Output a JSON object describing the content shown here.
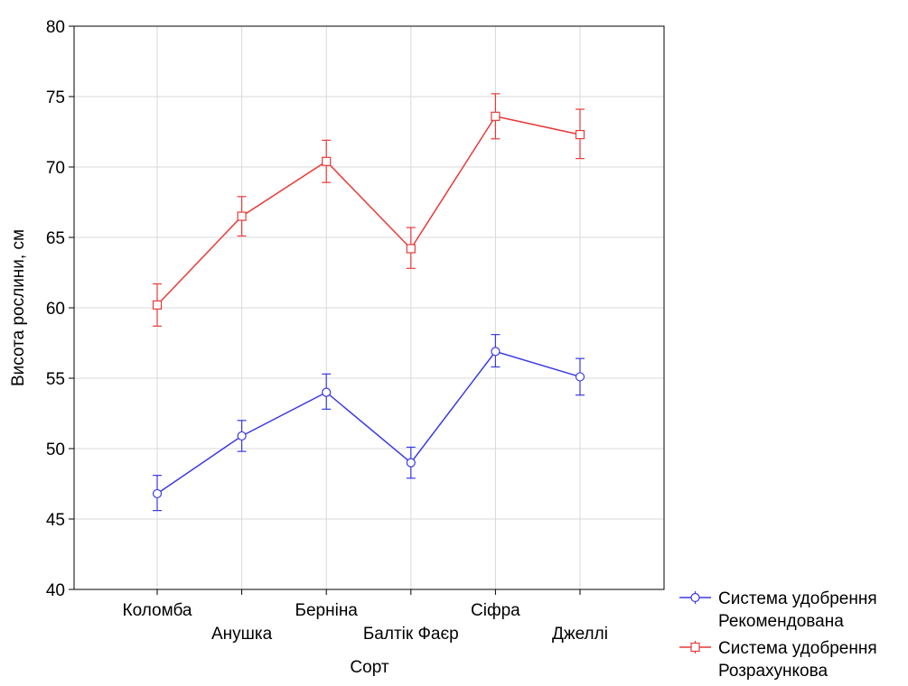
{
  "chart_data": {
    "type": "line",
    "title": "",
    "xlabel": "Сорт",
    "ylabel": "Висота рослини, см",
    "ylim": [
      40,
      80
    ],
    "yticks": [
      40,
      45,
      50,
      55,
      60,
      65,
      70,
      75,
      80
    ],
    "grid": true,
    "legend_position": "bottom-right",
    "categories": [
      "Коломба",
      "Анушка",
      "Берніна",
      "Балтік Фаєр",
      "Сіфра",
      "Джеллі"
    ],
    "series": [
      {
        "name": "Система удобрення Рекомендована",
        "legend_lines": [
          "Система удобрення",
          "Рекомендована"
        ],
        "color": "#3a3ae6",
        "marker": "circle",
        "values": [
          46.8,
          50.9,
          54.0,
          49.0,
          56.9,
          55.1
        ],
        "err_low": [
          45.6,
          49.8,
          52.8,
          47.9,
          55.8,
          53.8
        ],
        "err_high": [
          48.1,
          52.0,
          55.3,
          50.1,
          58.1,
          56.4
        ]
      },
      {
        "name": "Система удобрення Розрахункова",
        "legend_lines": [
          "Система удобрення",
          "Розрахункова"
        ],
        "color": "#e83a3a",
        "marker": "square",
        "values": [
          60.2,
          66.5,
          70.4,
          64.2,
          73.6,
          72.3
        ],
        "err_low": [
          58.7,
          65.1,
          68.9,
          62.8,
          72.0,
          70.6
        ],
        "err_high": [
          61.7,
          67.9,
          71.9,
          65.7,
          75.2,
          74.1
        ]
      }
    ]
  }
}
